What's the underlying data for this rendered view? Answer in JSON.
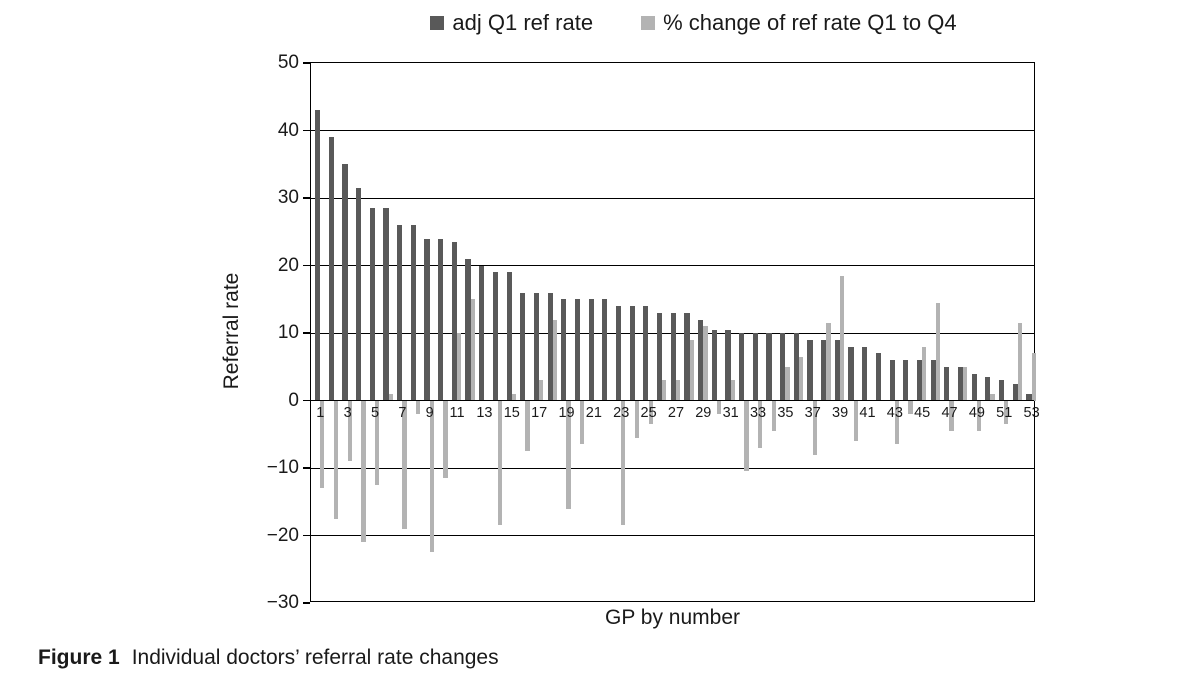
{
  "figure": {
    "caption_label": "Figure 1",
    "caption_text": "Individual doctors’ referral rate changes"
  },
  "chart_data": {
    "type": "bar",
    "title": "",
    "xlabel": "GP by number",
    "ylabel": "Referral rate",
    "ylim": [
      -30,
      50
    ],
    "ytick_step": 10,
    "yticks": [
      50,
      40,
      30,
      20,
      10,
      0,
      -10,
      -20,
      -30
    ],
    "xticks": [
      1,
      3,
      5,
      7,
      9,
      11,
      13,
      15,
      17,
      19,
      21,
      23,
      25,
      27,
      29,
      31,
      33,
      35,
      37,
      39,
      41,
      43,
      45,
      47,
      49,
      51,
      53
    ],
    "categories": [
      1,
      2,
      3,
      4,
      5,
      6,
      7,
      8,
      9,
      10,
      11,
      12,
      13,
      14,
      15,
      16,
      17,
      18,
      19,
      20,
      21,
      22,
      23,
      24,
      25,
      26,
      27,
      28,
      29,
      30,
      31,
      32,
      33,
      34,
      35,
      36,
      37,
      38,
      39,
      40,
      41,
      42,
      43,
      44,
      45,
      46,
      47,
      48,
      49,
      50,
      51,
      52,
      53
    ],
    "grid": "horizontal",
    "legend_position": "top-center",
    "series": [
      {
        "name": "adj Q1 ref rate",
        "color": "#595959",
        "values": [
          43,
          39,
          35,
          31.5,
          28.5,
          28.5,
          26,
          26,
          24,
          24,
          23.5,
          21,
          20,
          19,
          19,
          16,
          16,
          16,
          15,
          15,
          15,
          15,
          14,
          14,
          14,
          13,
          13,
          13,
          12,
          10.5,
          10.5,
          10,
          10,
          10,
          10,
          10,
          9,
          9,
          9,
          8,
          8,
          7,
          6,
          6,
          6,
          6,
          5,
          5,
          4,
          3.5,
          3,
          2.5,
          1
        ]
      },
      {
        "name": "% change of ref rate Q1 to Q4",
        "color": "#b3b3b3",
        "values": [
          -13,
          -17.5,
          -9,
          -21,
          -12.5,
          1,
          -19,
          -2,
          -22.5,
          -11.5,
          10,
          15,
          0,
          -18.5,
          1,
          -7.5,
          3,
          12,
          -16,
          -6.5,
          0,
          0,
          -18.5,
          -5.5,
          -3.5,
          3,
          3,
          9,
          11,
          -2,
          3,
          -10.5,
          -7,
          -4.5,
          5,
          6.5,
          -8,
          11.5,
          18.5,
          -6,
          0,
          0,
          -6.5,
          -2,
          8,
          14.5,
          -4.5,
          5,
          -4.5,
          1,
          -3.5,
          11.5,
          7
        ]
      }
    ]
  },
  "colors": {
    "background": "#ffffff",
    "axis": "#000000",
    "text": "#1a1a1a"
  }
}
